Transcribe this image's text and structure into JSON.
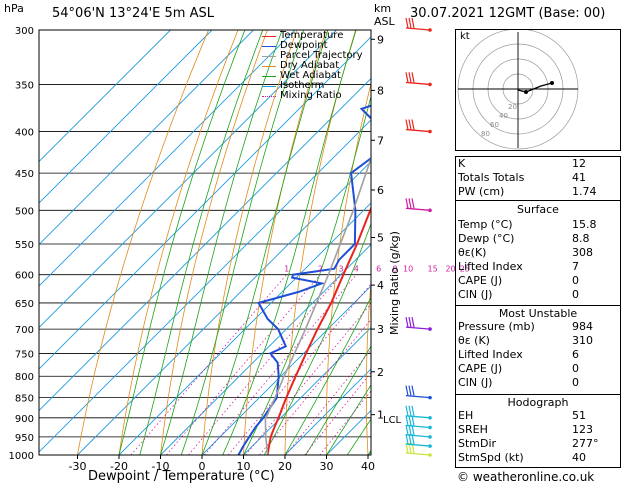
{
  "header": {
    "location": "54°06'N  13°24'E  5m  ASL",
    "hpa_label": "hPa",
    "km_label": "km",
    "asl_label": "ASL",
    "datetime": "30.07.2021  12GMT  (Base: 00)"
  },
  "footer": "© weatheronline.co.uk",
  "mixing_axis_label": "Mixing Ratio (g/kg)",
  "legend": [
    {
      "label": "Temperature",
      "color": "#e8261e"
    },
    {
      "label": "Dewpoint",
      "color": "#1f4fd8"
    },
    {
      "label": "Parcel Trajectory",
      "color": "#a0a0a0"
    },
    {
      "label": "Dry Adiabat",
      "color": "#e28a1b"
    },
    {
      "label": "Wet Adiabat",
      "color": "#1aa31a"
    },
    {
      "label": "Isotherm",
      "color": "#1e9be0"
    },
    {
      "label": "Mixing Ratio",
      "color": "#d01da0"
    }
  ],
  "indices": [
    {
      "label": "K",
      "value": "12"
    },
    {
      "label": "Totals Totals",
      "value": "41"
    },
    {
      "label": "PW (cm)",
      "value": "1.74"
    }
  ],
  "surface": {
    "title": "Surface",
    "rows": [
      {
        "label": "Temp (°C)",
        "value": "15.8"
      },
      {
        "label": "Dewp (°C)",
        "value": "8.8"
      },
      {
        "label": "θε(K)",
        "value": "308"
      },
      {
        "label": "Lifted Index",
        "value": "7"
      },
      {
        "label": "CAPE (J)",
        "value": "0"
      },
      {
        "label": "CIN (J)",
        "value": "0"
      }
    ]
  },
  "most_unstable": {
    "title": "Most Unstable",
    "rows": [
      {
        "label": "Pressure (mb)",
        "value": "984"
      },
      {
        "label": "θε (K)",
        "value": "310"
      },
      {
        "label": "Lifted Index",
        "value": "6"
      },
      {
        "label": "CAPE (J)",
        "value": "0"
      },
      {
        "label": "CIN (J)",
        "value": "0"
      }
    ]
  },
  "hodograph": {
    "title": "Hodograph",
    "label": "kt",
    "ring_labels": [
      "20",
      "40",
      "60",
      "80"
    ],
    "rows": [
      {
        "label": "EH",
        "value": "51"
      },
      {
        "label": "SREH",
        "value": "123"
      },
      {
        "label": "StmDir",
        "value": "277°"
      },
      {
        "label": "StmSpd (kt)",
        "value": "40"
      }
    ]
  },
  "chart_data": {
    "type": "line",
    "xlabel": "Dewpoint / Temperature (°C)",
    "ylabel": "hPa",
    "x_ticks": [
      -30,
      -20,
      -10,
      0,
      10,
      20,
      30,
      40
    ],
    "pressure_levels": [
      300,
      350,
      400,
      450,
      500,
      550,
      600,
      650,
      700,
      750,
      800,
      850,
      900,
      950,
      1000
    ],
    "km_ticks": [
      {
        "km": "1",
        "p": 892
      },
      {
        "km": "2",
        "p": 790
      },
      {
        "km": "3",
        "p": 700
      },
      {
        "km": "4",
        "p": 618
      },
      {
        "km": "5",
        "p": 540
      },
      {
        "km": "6",
        "p": 472
      },
      {
        "km": "7",
        "p": 410
      },
      {
        "km": "8",
        "p": 356
      },
      {
        "km": "9",
        "p": 308
      }
    ],
    "lcl": {
      "label": "LCL",
      "p": 903
    },
    "mixing_ratios": [
      "1",
      "2",
      "3",
      "4",
      "6",
      "8",
      "10",
      "15",
      "20",
      "25"
    ],
    "series": [
      {
        "name": "Temperature",
        "color": "#e8261e",
        "points": [
          [
            1000,
            15.8
          ],
          [
            975,
            14
          ],
          [
            950,
            12.2
          ],
          [
            925,
            10.8
          ],
          [
            900,
            9.5
          ],
          [
            875,
            8
          ],
          [
            850,
            6.5
          ],
          [
            800,
            3.6
          ],
          [
            750,
            0.6
          ],
          [
            700,
            -2.5
          ],
          [
            650,
            -5.5
          ],
          [
            600,
            -9.4
          ],
          [
            550,
            -13.5
          ],
          [
            500,
            -18.4
          ],
          [
            450,
            -24
          ],
          [
            400,
            -30.5
          ],
          [
            350,
            -38
          ],
          [
            300,
            -46
          ]
        ]
      },
      {
        "name": "Dewpoint",
        "color": "#1f4fd8",
        "points": [
          [
            1000,
            8.8
          ],
          [
            975,
            7.8
          ],
          [
            950,
            7
          ],
          [
            925,
            6.2
          ],
          [
            900,
            5.8
          ],
          [
            875,
            5
          ],
          [
            850,
            4.2
          ],
          [
            800,
            -0.5
          ],
          [
            770,
            -4
          ],
          [
            750,
            -8
          ],
          [
            735,
            -6
          ],
          [
            700,
            -12
          ],
          [
            680,
            -17
          ],
          [
            650,
            -23
          ],
          [
            630,
            -16
          ],
          [
            615,
            -12.5
          ],
          [
            605,
            -21
          ],
          [
            600,
            -21.5
          ],
          [
            590,
            -13
          ],
          [
            575,
            -14
          ],
          [
            550,
            -14
          ],
          [
            500,
            -22
          ],
          [
            450,
            -32
          ],
          [
            420,
            -30
          ],
          [
            400,
            -34
          ],
          [
            375,
            -45
          ],
          [
            350,
            -33
          ],
          [
            330,
            -38
          ],
          [
            300,
            -42
          ]
        ]
      },
      {
        "name": "Parcel Trajectory",
        "color": "#a0a0a0",
        "points": [
          [
            1000,
            15.8
          ],
          [
            950,
            11
          ],
          [
            903,
            6.6
          ],
          [
            850,
            3.8
          ],
          [
            800,
            0.8
          ],
          [
            700,
            -5.4
          ],
          [
            600,
            -13
          ],
          [
            500,
            -22.5
          ],
          [
            400,
            -35
          ],
          [
            300,
            -52
          ]
        ]
      }
    ],
    "wind_barbs": [
      {
        "p": 1000,
        "color": "#c8e63c"
      },
      {
        "p": 975,
        "color": "#18b7d8"
      },
      {
        "p": 950,
        "color": "#18b7d8"
      },
      {
        "p": 925,
        "color": "#18b7d8"
      },
      {
        "p": 900,
        "color": "#18b7d8"
      },
      {
        "p": 850,
        "color": "#1f4fd8"
      },
      {
        "p": 700,
        "color": "#8a1bd8"
      },
      {
        "p": 500,
        "color": "#d01da0"
      },
      {
        "p": 400,
        "color": "#e8261e"
      },
      {
        "p": 350,
        "color": "#e8261e"
      },
      {
        "p": 300,
        "color": "#e8261e"
      }
    ]
  }
}
